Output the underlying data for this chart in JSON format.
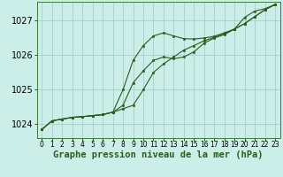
{
  "title": "Graphe pression niveau de la mer (hPa)",
  "bg_color": "#cceee8",
  "grid_color": "#aacccc",
  "line_color": "#2d5a1e",
  "marker_color": "#2d5a1e",
  "xlim": [
    -0.5,
    23.5
  ],
  "ylim": [
    1023.6,
    1027.55
  ],
  "yticks": [
    1024,
    1025,
    1026,
    1027
  ],
  "xticks": [
    0,
    1,
    2,
    3,
    4,
    5,
    6,
    7,
    8,
    9,
    10,
    11,
    12,
    13,
    14,
    15,
    16,
    17,
    18,
    19,
    20,
    21,
    22,
    23
  ],
  "series1_x": [
    0,
    1,
    2,
    3,
    4,
    5,
    6,
    7,
    8,
    9,
    10,
    11,
    12,
    13,
    14,
    15,
    16,
    17,
    18,
    19,
    20,
    21,
    22,
    23
  ],
  "series1_y": [
    1023.85,
    1024.1,
    1024.15,
    1024.2,
    1024.22,
    1024.25,
    1024.28,
    1024.35,
    1024.45,
    1024.55,
    1025.0,
    1025.5,
    1025.75,
    1025.95,
    1026.15,
    1026.28,
    1026.42,
    1026.52,
    1026.62,
    1026.76,
    1026.92,
    1027.12,
    1027.32,
    1027.47
  ],
  "series2_x": [
    0,
    1,
    2,
    3,
    4,
    5,
    6,
    7,
    8,
    9,
    10,
    11,
    12,
    13,
    14,
    15,
    16,
    17,
    18,
    19,
    20,
    21,
    22,
    23
  ],
  "series2_y": [
    1023.85,
    1024.1,
    1024.15,
    1024.2,
    1024.22,
    1024.25,
    1024.28,
    1024.35,
    1025.0,
    1025.85,
    1026.28,
    1026.56,
    1026.65,
    1026.56,
    1026.48,
    1026.47,
    1026.5,
    1026.55,
    1026.65,
    1026.76,
    1027.1,
    1027.28,
    1027.35,
    1027.47
  ],
  "series3_x": [
    0,
    1,
    2,
    3,
    4,
    5,
    6,
    7,
    8,
    9,
    10,
    11,
    12,
    13,
    14,
    15,
    16,
    17,
    18,
    19,
    20,
    21,
    22,
    23
  ],
  "series3_y": [
    1023.85,
    1024.1,
    1024.15,
    1024.2,
    1024.22,
    1024.25,
    1024.28,
    1024.35,
    1024.55,
    1025.2,
    1025.55,
    1025.85,
    1025.95,
    1025.9,
    1025.95,
    1026.1,
    1026.35,
    1026.5,
    1026.6,
    1026.76,
    1026.92,
    1027.12,
    1027.32,
    1027.47
  ],
  "xlabel_fontsize": 7.5,
  "ytick_fontsize": 7,
  "xtick_fontsize": 5.5
}
